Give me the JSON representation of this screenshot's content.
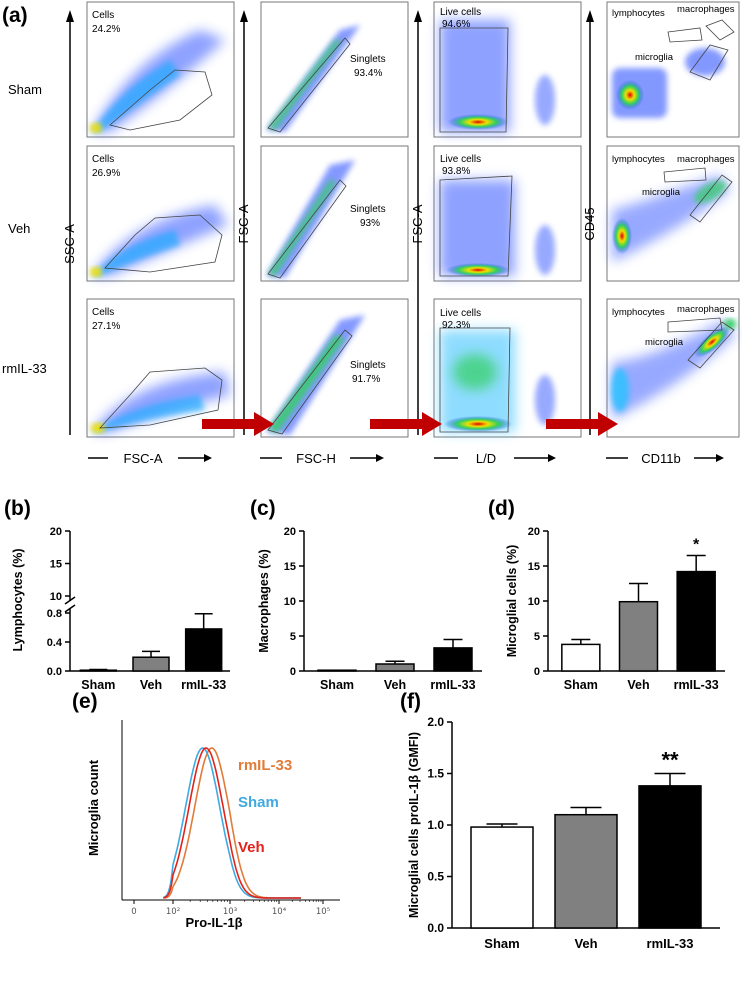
{
  "panel_letters": [
    "(a)",
    "(b)",
    "(c)",
    "(d)",
    "(e)",
    "(f)"
  ],
  "colors": {
    "arrow": "#c00000",
    "bar_sham": "#ffffff",
    "bar_veh": "#808080",
    "bar_rmil33": "#000000",
    "line_rmil33": "#e07b39",
    "line_sham": "#3fa9e0",
    "line_veh": "#e2231a"
  },
  "flow": {
    "row_labels": [
      "Sham",
      "Veh",
      "rmIL-33"
    ],
    "col_y_labels": [
      "SSC-A",
      "FSC-A",
      "FSC-A",
      "CD45"
    ],
    "col_x_labels": [
      "FSC-A",
      "FSC-H",
      "L/D",
      "CD11b"
    ],
    "gates": {
      "cells": {
        "name": "Cells",
        "values": [
          "24.2%",
          "26.9%",
          "27.1%"
        ]
      },
      "singlets": {
        "name": "Singlets",
        "values": [
          "93.4%",
          "93%",
          "91.7%"
        ]
      },
      "live": {
        "name": "Live cells",
        "values": [
          "94.6%",
          "93.8%",
          "92.3%"
        ]
      },
      "populations": [
        "lymphocytes",
        "macrophages",
        "microglia"
      ]
    }
  },
  "chart_data": [
    {
      "id": "b",
      "type": "bar",
      "ylabel": "Lymphocytes (%)",
      "categories": [
        "Sham",
        "Veh",
        "rmIL-33"
      ],
      "values": [
        0.01,
        0.19,
        0.58
      ],
      "errors": [
        0.01,
        0.08,
        0.21
      ],
      "axis_break": true,
      "lower_ylim": [
        0,
        0.8
      ],
      "lower_ticks": [
        "0.0",
        "0.4",
        "0.8"
      ],
      "upper_ticks": [
        "10",
        "15",
        "20"
      ]
    },
    {
      "id": "c",
      "type": "bar",
      "ylabel": "Macrophages (%)",
      "categories": [
        "Sham",
        "Veh",
        "rmIL-33"
      ],
      "values": [
        0.0,
        1.0,
        3.3
      ],
      "errors": [
        0.0,
        0.4,
        1.2
      ],
      "ylim": [
        0,
        20
      ],
      "ticks": [
        "0",
        "5",
        "10",
        "15",
        "20"
      ]
    },
    {
      "id": "d",
      "type": "bar",
      "ylabel": "Microglial cells (%)",
      "categories": [
        "Sham",
        "Veh",
        "rmIL-33"
      ],
      "values": [
        3.8,
        9.9,
        14.2
      ],
      "errors": [
        0.7,
        2.6,
        2.3
      ],
      "ylim": [
        0,
        20
      ],
      "ticks": [
        "0",
        "5",
        "10",
        "15",
        "20"
      ],
      "significance": [
        "",
        "",
        "*"
      ]
    },
    {
      "id": "e",
      "type": "line",
      "ylabel": "Microglia count",
      "xlabel": "Pro-IL-1β",
      "x_scale": "log",
      "x_ticks": [
        "0",
        "10²",
        "10³",
        "10⁴",
        "10⁵"
      ],
      "series": [
        {
          "name": "rmIL-33",
          "peak_log10": 2.68,
          "width": 0.3
        },
        {
          "name": "Sham",
          "peak_log10": 2.52,
          "width": 0.3
        },
        {
          "name": "Veh",
          "peak_log10": 2.58,
          "width": 0.3
        }
      ]
    },
    {
      "id": "f",
      "type": "bar",
      "ylabel": "Microglial cells proIL-1β (GMFI)",
      "categories": [
        "Sham",
        "Veh",
        "rmIL-33"
      ],
      "values": [
        0.98,
        1.1,
        1.38
      ],
      "errors": [
        0.03,
        0.07,
        0.12
      ],
      "ylim": [
        0,
        2.0
      ],
      "ticks": [
        "0.0",
        "0.5",
        "1.0",
        "1.5",
        "2.0"
      ],
      "significance": [
        "",
        "",
        "**"
      ]
    }
  ]
}
